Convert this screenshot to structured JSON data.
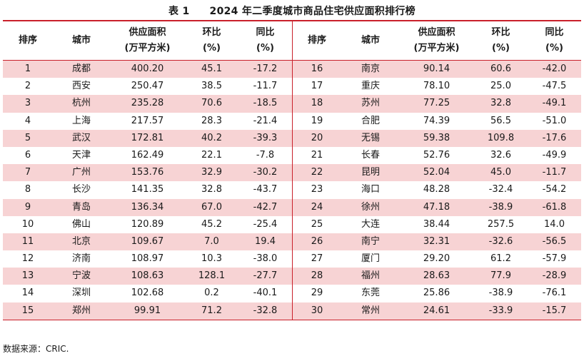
{
  "title": {
    "label": "表 1",
    "text": "2024 年二季度城市商品住宅供应面积排行榜"
  },
  "headers": [
    {
      "line1": "排序",
      "line2": ""
    },
    {
      "line1": "城市",
      "line2": ""
    },
    {
      "line1": "供应面积",
      "line2": "(万平方米)"
    },
    {
      "line1": "环比",
      "line2": "(%)"
    },
    {
      "line1": "同比",
      "line2": "(%)"
    }
  ],
  "left_rows": [
    [
      "1",
      "成都",
      "400.20",
      "45.1",
      "-17.2"
    ],
    [
      "2",
      "西安",
      "250.47",
      "38.5",
      "-11.7"
    ],
    [
      "3",
      "杭州",
      "235.28",
      "70.6",
      "-18.5"
    ],
    [
      "4",
      "上海",
      "217.57",
      "28.3",
      "-21.4"
    ],
    [
      "5",
      "武汉",
      "172.81",
      "40.2",
      "-39.3"
    ],
    [
      "6",
      "天津",
      "162.49",
      "22.1",
      "-7.8"
    ],
    [
      "7",
      "广州",
      "153.76",
      "32.9",
      "-30.2"
    ],
    [
      "8",
      "长沙",
      "141.35",
      "32.8",
      "-43.7"
    ],
    [
      "9",
      "青岛",
      "136.34",
      "67.0",
      "-42.7"
    ],
    [
      "10",
      "佛山",
      "120.89",
      "45.2",
      "-25.4"
    ],
    [
      "11",
      "北京",
      "109.67",
      "7.0",
      "19.4"
    ],
    [
      "12",
      "济南",
      "108.97",
      "10.3",
      "-38.0"
    ],
    [
      "13",
      "宁波",
      "108.63",
      "128.1",
      "-27.7"
    ],
    [
      "14",
      "深圳",
      "102.68",
      "0.2",
      "-40.1"
    ],
    [
      "15",
      "郑州",
      "99.91",
      "71.2",
      "-32.8"
    ]
  ],
  "right_rows": [
    [
      "16",
      "南京",
      "90.14",
      "60.6",
      "-42.0"
    ],
    [
      "17",
      "重庆",
      "78.10",
      "25.0",
      "-47.5"
    ],
    [
      "18",
      "苏州",
      "77.25",
      "32.8",
      "-49.1"
    ],
    [
      "19",
      "合肥",
      "74.39",
      "56.5",
      "-51.0"
    ],
    [
      "20",
      "无锡",
      "59.38",
      "109.8",
      "-17.6"
    ],
    [
      "21",
      "长春",
      "52.76",
      "32.6",
      "-49.9"
    ],
    [
      "22",
      "昆明",
      "52.04",
      "45.0",
      "-11.7"
    ],
    [
      "23",
      "海口",
      "48.28",
      "-32.4",
      "-54.2"
    ],
    [
      "24",
      "徐州",
      "47.18",
      "-38.9",
      "-61.8"
    ],
    [
      "25",
      "大连",
      "38.44",
      "257.5",
      "14.0"
    ],
    [
      "26",
      "南宁",
      "32.31",
      "-32.6",
      "-56.5"
    ],
    [
      "27",
      "厦门",
      "29.20",
      "61.2",
      "-57.9"
    ],
    [
      "28",
      "福州",
      "28.63",
      "77.9",
      "-28.9"
    ],
    [
      "29",
      "东莞",
      "25.86",
      "-38.9",
      "-76.1"
    ],
    [
      "30",
      "常州",
      "24.61",
      "-33.9",
      "-15.7"
    ]
  ],
  "source": "数据来源：CRIC.",
  "colors": {
    "rule": "#c9202a",
    "stripe": "#f7d3d4"
  }
}
